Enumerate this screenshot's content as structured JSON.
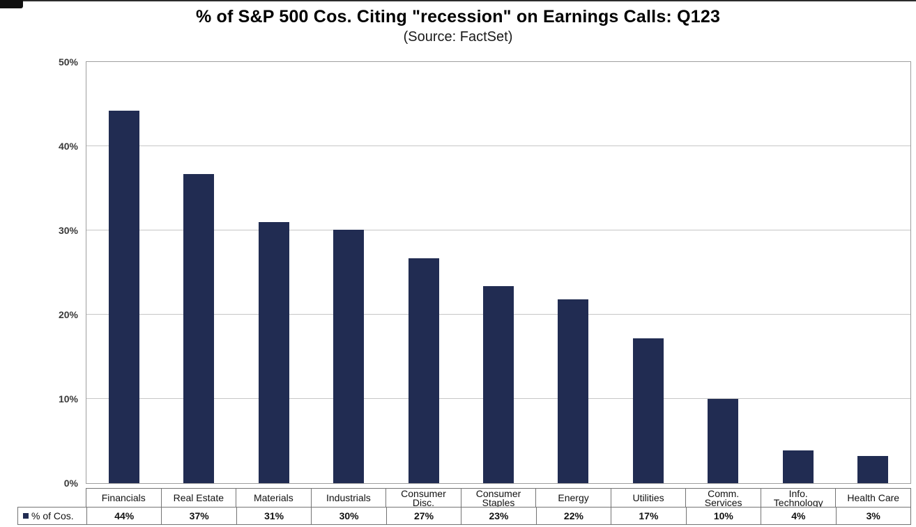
{
  "page": {
    "title": "% of S&P 500 Cos. Citing \"recession\" on Earnings Calls: Q123",
    "subtitle": "(Source: FactSet)"
  },
  "chart_data": {
    "type": "bar",
    "title": "% of S&P 500 Cos. Citing \"recession\" on Earnings Calls: Q123",
    "subtitle": "(Source: FactSet)",
    "categories": [
      "Financials",
      "Real Estate",
      "Materials",
      "Industrials",
      "Consumer Disc.",
      "Consumer Staples",
      "Energy",
      "Utilities",
      "Comm. Services",
      "Info. Technology",
      "Health Care"
    ],
    "series": [
      {
        "name": "% of Cos.",
        "values": [
          44,
          37,
          31,
          30,
          27,
          23,
          22,
          17,
          10,
          4,
          3
        ],
        "display_values": [
          "44%",
          "37%",
          "31%",
          "30%",
          "27%",
          "23%",
          "22%",
          "17%",
          "10%",
          "4%",
          "3%"
        ],
        "values_precise": [
          44.2,
          36.7,
          31.0,
          30.1,
          26.7,
          23.4,
          21.8,
          17.2,
          10.0,
          3.9,
          3.2
        ]
      }
    ],
    "xlabel": "",
    "ylabel": "",
    "ylim": [
      0,
      50
    ],
    "y_step": 10,
    "y_ticks": [
      "0%",
      "10%",
      "20%",
      "30%",
      "40%",
      "50%"
    ],
    "grid": true,
    "legend_position": "bottom-left of data table",
    "bar_color": "#212C52",
    "gridline_color": "#C6C6C6"
  }
}
